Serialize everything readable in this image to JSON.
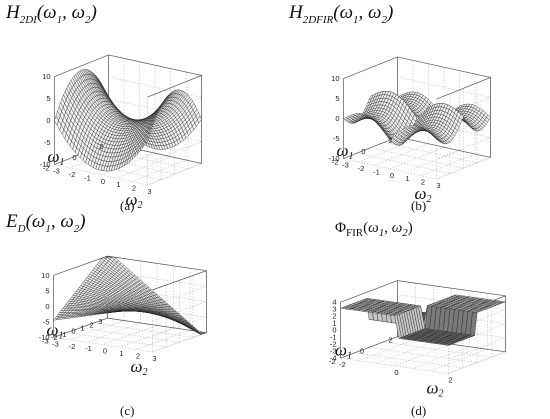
{
  "chart_data": [
    {
      "type": "surface",
      "panel_id": "a",
      "title_main": "H",
      "title_sub": "2DI",
      "title_args": "(ω",
      "caption": "(a)",
      "xlabel": "ω",
      "xlabel_sub": "2",
      "ylabel": "ω",
      "ylabel_sub": "1",
      "zlim": [
        -10,
        10
      ],
      "z_ticks": [
        "10",
        "5",
        "0",
        "-5",
        "-10"
      ],
      "x_ticks": [
        "-3",
        "-2",
        "-1",
        "0",
        "1",
        "2",
        "3"
      ],
      "y_ticks": [
        "2",
        "0",
        "-2"
      ],
      "surface": "saddle"
    },
    {
      "type": "surface",
      "panel_id": "b",
      "title_main": "H",
      "title_sub": "2DFIR",
      "caption": "(b)",
      "xlabel": "ω",
      "xlabel_sub": "2",
      "ylabel": "ω",
      "ylabel_sub": "1",
      "zlim": [
        -10,
        10
      ],
      "z_ticks": [
        "10",
        "5",
        "0",
        "-5",
        "-10"
      ],
      "x_ticks": [
        "-3",
        "-2",
        "-1",
        "0",
        "1",
        "2",
        "3"
      ],
      "y_ticks": [
        "2",
        "0",
        "-2"
      ],
      "surface": "fir"
    },
    {
      "type": "surface",
      "panel_id": "c",
      "title_main": "E",
      "title_sub": "D",
      "caption": "(c)",
      "xlabel": "ω",
      "xlabel_sub": "2",
      "ylabel": "ω",
      "ylabel_sub": "1",
      "zlim": [
        -10,
        10
      ],
      "z_ticks": [
        "10",
        "5",
        "0",
        "-5",
        "-10"
      ],
      "x_ticks": [
        "-3",
        "-2",
        "-1",
        "0",
        "1",
        "2",
        "3"
      ],
      "y_ticks": [
        "3",
        "2",
        "1",
        "0",
        "-1",
        "-2",
        "-3"
      ],
      "surface": "error"
    },
    {
      "type": "surface",
      "panel_id": "d",
      "title_main": "Φ",
      "title_sub": "FIR",
      "caption": "(d)",
      "xlabel": "ω",
      "xlabel_sub": "2",
      "ylabel": "ω",
      "ylabel_sub": "1",
      "zlim": [
        -4,
        4
      ],
      "z_ticks": [
        "4",
        "3",
        "2",
        "1",
        "0",
        "-1",
        "-2",
        "-3",
        "-4"
      ],
      "x_ticks": [
        "-2",
        "0",
        "2"
      ],
      "y_ticks": [
        "2",
        "0",
        "-2"
      ],
      "surface": "phase"
    }
  ]
}
